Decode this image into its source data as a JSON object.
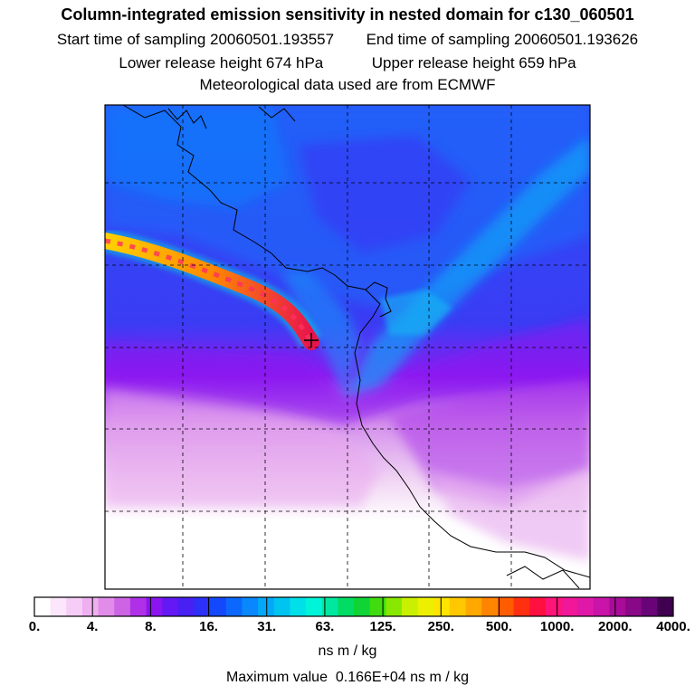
{
  "header": {
    "title": "Column-integrated emission sensitivity in nested domain for c130_060501",
    "start_label": "Start time of sampling 20060501.193557",
    "end_label": "End time of sampling 20060501.193626",
    "lower_label": "Lower release height  674 hPa",
    "upper_label": "Upper release height  659 hPa",
    "met_label": "Meteorological data used are from ECMWF"
  },
  "colorbar": {
    "ticks": [
      "0.",
      "4.",
      "8.",
      "16.",
      "31.",
      "63.",
      "125.",
      "250.",
      "500.",
      "1000.",
      "2000.",
      "4000."
    ],
    "colors": [
      "#ffffff",
      "#fbe6fb",
      "#f6cdf6",
      "#eeb0f0",
      "#e08ce8",
      "#cc64e4",
      "#b030e8",
      "#8c14f0",
      "#6418f4",
      "#4820f4",
      "#2c30f8",
      "#1448fc",
      "#0c68fc",
      "#0888fc",
      "#04a8f8",
      "#00c4f0",
      "#00e0e8",
      "#00f4d8",
      "#00e8a0",
      "#00dc64",
      "#10d434",
      "#40dc10",
      "#88e800",
      "#c8f000",
      "#ecf000",
      "#ffe400",
      "#ffc800",
      "#ffa800",
      "#ff8400",
      "#ff5c00",
      "#ff3010",
      "#ff1040",
      "#ff1478",
      "#f01898",
      "#e018a8",
      "#c814a8",
      "#a80c98",
      "#880888",
      "#680478",
      "#400050"
    ],
    "units": "ns m / kg"
  },
  "footer": {
    "max_label": "Maximum value  0.166E+04 ns m / kg"
  },
  "map": {
    "plume_colors": [
      "#ffdc00",
      "#ff6a00",
      "#e81c4c",
      "#00e8c0"
    ],
    "release_marker": "release-point-cross-icon"
  }
}
